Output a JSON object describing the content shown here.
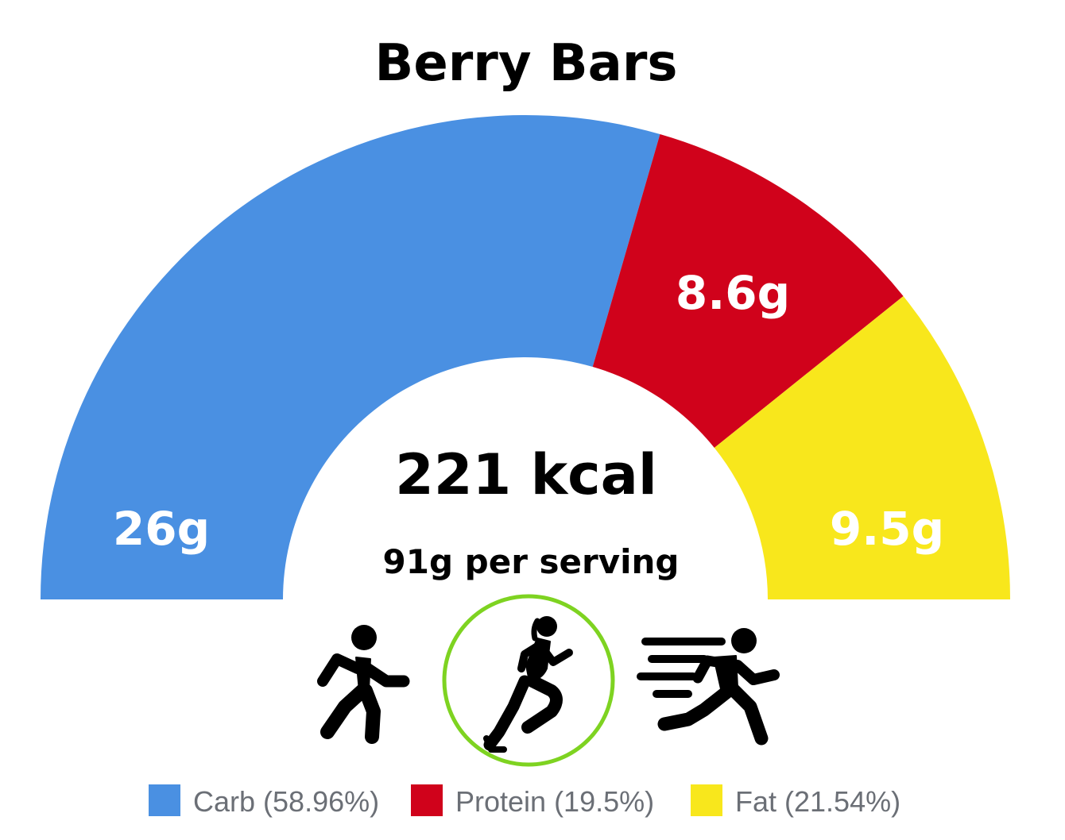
{
  "chart_data": {
    "type": "pie",
    "title": "Berry Bars",
    "center": {
      "calories": "221 kcal",
      "serving": "91g per serving"
    },
    "slices": [
      {
        "label": "26g",
        "grams": 26,
        "share": 58.96,
        "legend": "Carb (58.96%)",
        "color": "#4a90e2"
      },
      {
        "label": "8.6g",
        "grams": 8.6,
        "share": 19.5,
        "legend": "Protein (19.5%)",
        "color": "#d0021b"
      },
      {
        "label": "9.5g",
        "grams": 9.5,
        "share": 21.54,
        "legend": "Fat (21.54%)",
        "color": "#f8e71c"
      }
    ],
    "legend_placement": "bottom",
    "activity_icons": [
      {
        "name": "walking-person-icon",
        "highlighted": false
      },
      {
        "name": "running-woman-icon",
        "highlighted": true
      },
      {
        "name": "sprinting-person-icon",
        "highlighted": false
      }
    ],
    "highlight_color": "#7ed321"
  }
}
